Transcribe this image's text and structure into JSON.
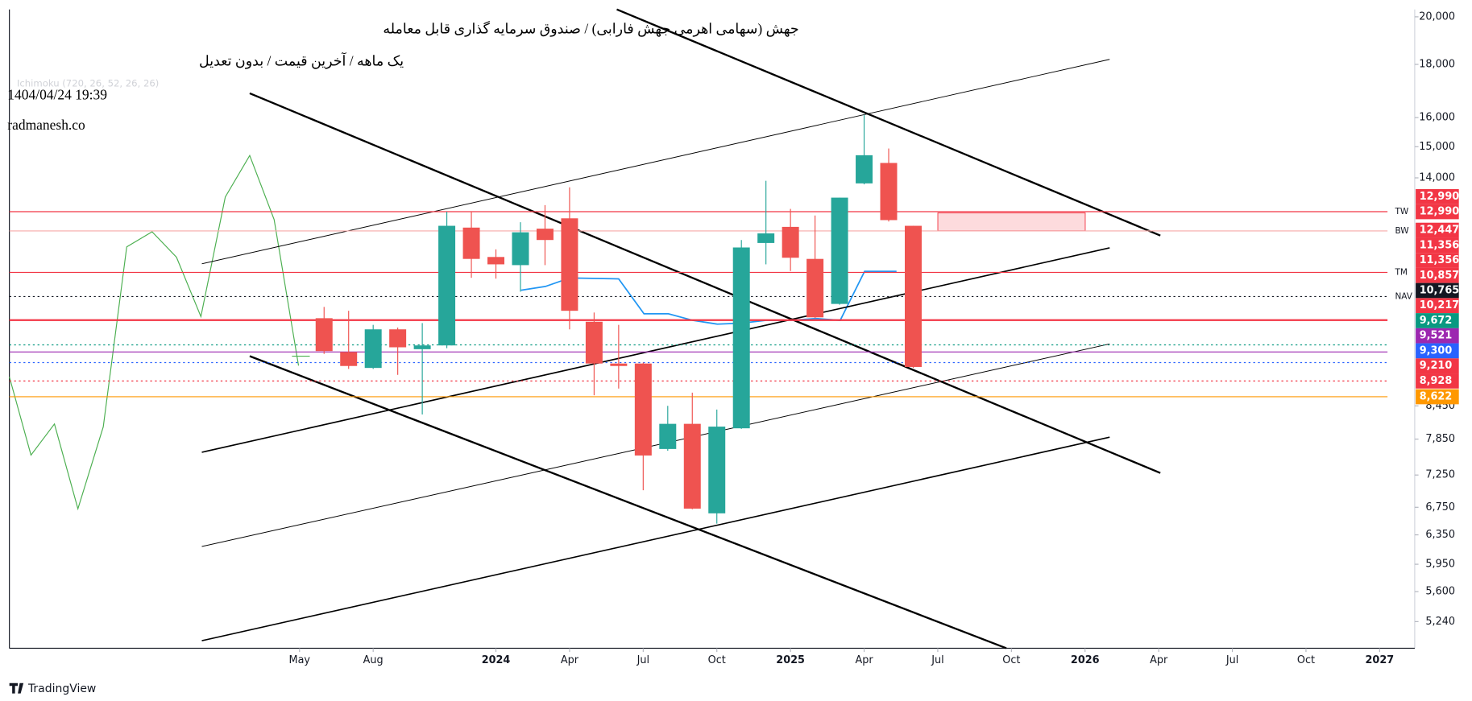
{
  "chart_data": {
    "type": "candlestick",
    "title": "جهش (سهامی اهرمی جهش فارابی) / صندوق سرمایه گذاری قابل معامله",
    "subtitle": "یک ماهه / آخرین قیمت / بدون تعدیل",
    "annotations": [
      "1404/04/24 19:39",
      "radmanesh.co"
    ],
    "indicator_label": "Ichimoku (720, 26, 52, 26, 26)",
    "footer": "TradingView",
    "log_scale": true,
    "up_color": "#26a69a",
    "down_color": "#ef5350",
    "x": [
      1,
      2,
      3,
      4,
      5,
      6,
      7,
      8,
      9,
      10,
      11,
      12,
      13,
      14,
      15,
      16,
      17,
      18,
      19,
      20,
      21,
      22,
      23,
      24,
      25
    ],
    "open": [
      10260,
      9520,
      9190,
      10010,
      9580,
      9660,
      12540,
      11750,
      11540,
      12510,
      12800,
      10180,
      9280,
      9280,
      7680,
      8120,
      6660,
      8040,
      12120,
      12560,
      11700,
      10590,
      13830,
      14470,
      12590
    ],
    "high": [
      10520,
      10430,
      10110,
      10050,
      10150,
      12990,
      12990,
      11950,
      12690,
      13180,
      13710,
      10390,
      10110,
      9300,
      8450,
      8700,
      8380,
      12200,
      13910,
      13070,
      12880,
      13400,
      16100,
      14940,
      12590
    ],
    "low": [
      9480,
      9170,
      9170,
      9050,
      8290,
      9600,
      11220,
      11200,
      10880,
      11540,
      10010,
      8650,
      8780,
      7010,
      7650,
      6720,
      6510,
      8030,
      11560,
      11390,
      10260,
      10570,
      13800,
      12710,
      9190
    ],
    "close": [
      9540,
      9230,
      10010,
      9620,
      9660,
      12590,
      11700,
      11560,
      12410,
      12200,
      10430,
      9280,
      9230,
      7570,
      8120,
      6730,
      8070,
      12000,
      12380,
      11730,
      10280,
      13400,
      14720,
      12750,
      9210
    ],
    "xlim": [
      -11.82,
      45.43
    ],
    "xticks": [
      {
        "value": 0,
        "label": "May"
      },
      {
        "value": 3,
        "label": "Aug"
      },
      {
        "value": 8,
        "label": "2024"
      },
      {
        "value": 11,
        "label": "Apr"
      },
      {
        "value": 14,
        "label": "Jul"
      },
      {
        "value": 17,
        "label": "Oct"
      },
      {
        "value": 20,
        "label": "2025"
      },
      {
        "value": 23,
        "label": "Apr"
      },
      {
        "value": 26,
        "label": "Jul"
      },
      {
        "value": 29,
        "label": "Oct"
      },
      {
        "value": 32,
        "label": "2026"
      },
      {
        "value": 35,
        "label": "Apr"
      },
      {
        "value": 38,
        "label": "Jul"
      },
      {
        "value": 41,
        "label": "Oct"
      },
      {
        "value": 44,
        "label": "2027"
      }
    ],
    "ylim": [
      4940,
      20330
    ],
    "yticks": [
      {
        "value": 20000,
        "label": "20,000"
      },
      {
        "value": 18000,
        "label": "18,000"
      },
      {
        "value": 16000,
        "label": "16,000"
      },
      {
        "value": 15000,
        "label": "15,000"
      },
      {
        "value": 14000,
        "label": "14,000"
      },
      {
        "value": 8450,
        "label": "8,450"
      },
      {
        "value": 7850,
        "label": "7,850"
      },
      {
        "value": 7250,
        "label": "7,250"
      },
      {
        "value": 6750,
        "label": "6,750"
      },
      {
        "value": 6350,
        "label": "6,350"
      },
      {
        "value": 5950,
        "label": "5,950"
      },
      {
        "value": 5600,
        "label": "5,600"
      },
      {
        "value": 5240,
        "label": "5,240"
      }
    ],
    "levels": [
      {
        "value": 12990,
        "color": "#f23645",
        "style": "solid",
        "name": "TW"
      },
      {
        "value": 12447,
        "color": "#f7a9a8",
        "style": "solid",
        "name": "BW"
      },
      {
        "value": 11356,
        "color": "#f23645",
        "style": "solid",
        "name": "TM"
      },
      {
        "value": 10765,
        "color": "#131722",
        "style": "dotted",
        "name": "NAV"
      },
      {
        "value": 10217,
        "color": "#f23645",
        "style": "thick"
      },
      {
        "value": 9672,
        "color": "#089981",
        "style": "dotted"
      },
      {
        "value": 9521,
        "color": "#9c27b0",
        "style": "solid"
      },
      {
        "value": 9300,
        "color": "#2962ff",
        "style": "dotted"
      },
      {
        "value": 8928,
        "color": "#f23645",
        "style": "dotted"
      },
      {
        "value": 8622,
        "color": "#ff9800",
        "style": "solid"
      }
    ],
    "price_tags": [
      {
        "value": 12990,
        "label": "12,990",
        "color": "#f23645"
      },
      {
        "value": 12990,
        "label": "12,990",
        "color": "#f23645"
      },
      {
        "value": 12447,
        "label": "12,447",
        "color": "#f23645"
      },
      {
        "value": 11356,
        "label": "11,356",
        "color": "#f23645"
      },
      {
        "value": 11356,
        "label": "11,356",
        "color": "#f23645"
      },
      {
        "value": 10857,
        "label": "10,857",
        "color": "#f23645"
      },
      {
        "value": 10765,
        "label": "10,765",
        "color": "#131722"
      },
      {
        "value": 10217,
        "label": "10,217",
        "color": "#f23645"
      },
      {
        "value": 9672,
        "label": "9,672",
        "color": "#089981"
      },
      {
        "value": 9521,
        "label": "9,521",
        "color": "#9c27b0"
      },
      {
        "value": 9300,
        "label": "9,300",
        "color": "#2962ff"
      },
      {
        "value": 9210,
        "label": "9,210",
        "color": "#f23645"
      },
      {
        "value": 8928,
        "label": "8,928",
        "color": "#f23645"
      },
      {
        "value": 8622,
        "label": "8,622",
        "color": "#ff9800"
      }
    ]
  }
}
